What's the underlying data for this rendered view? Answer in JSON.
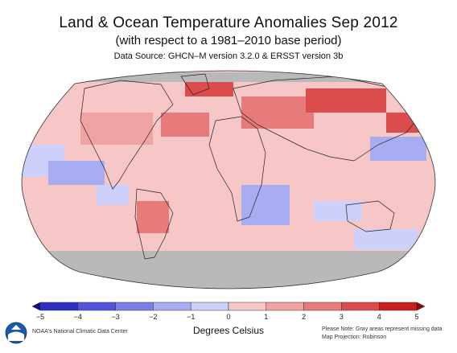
{
  "title": "Land & Ocean Temperature Anomalies Sep 2012",
  "subtitle": "(with respect to a 1981–2010 base period)",
  "source": "Data Source: GHCN–M version 3.2.0 & ERSST version 3b",
  "legend": {
    "ticks": [
      "−5",
      "−4",
      "−3",
      "−2",
      "−1",
      "0",
      "1",
      "2",
      "3",
      "4",
      "5"
    ],
    "units": "Degrees Celsius",
    "colors": [
      "#0d0a8c",
      "#2d2fc1",
      "#5154d8",
      "#7a7ee6",
      "#a8adf2",
      "#ccd0fa",
      "#f7c6c6",
      "#f1a2a2",
      "#e77b7b",
      "#db4d4d",
      "#c81e1e",
      "#8c0a0a"
    ]
  },
  "footer": {
    "credit": "NOAA's National Climatic Data Center",
    "note": "Please Note: Gray areas represent missing data",
    "projection": "Map Projection: Robinson"
  },
  "map": {
    "missing_color": "#b9b9b9",
    "ocean_color": "#f7c6c6",
    "land_outline": "#222222"
  },
  "logo": "noaa-logo"
}
